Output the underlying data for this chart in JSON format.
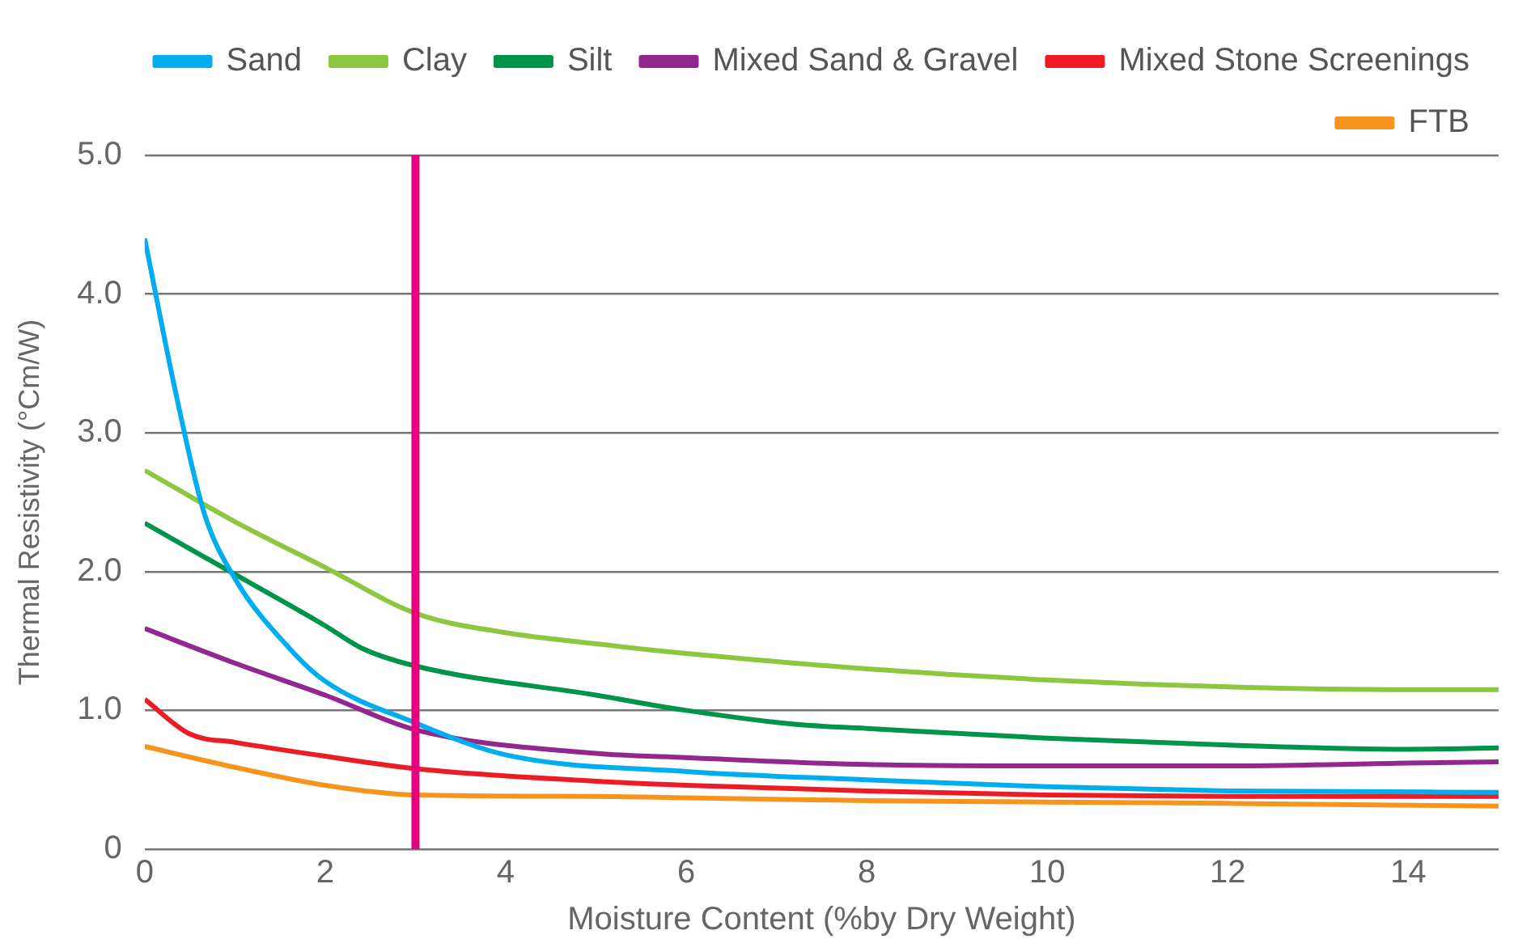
{
  "chart_data": {
    "type": "line",
    "xlabel": "Moisture Content (%by Dry Weight)",
    "ylabel": "Thermal Resistivity (°Cm/W)",
    "xlim": [
      0,
      15
    ],
    "xticks": [
      0,
      2,
      4,
      6,
      8,
      10,
      12,
      14
    ],
    "ylim": [
      0,
      5
    ],
    "yticks": [
      0,
      {
        "value": 1,
        "label": "1.0"
      },
      {
        "value": 2,
        "label": "2.0"
      },
      {
        "value": 3,
        "label": "3.0"
      },
      {
        "value": 4,
        "label": "4.0"
      },
      {
        "value": 5,
        "label": "5.0"
      }
    ],
    "grid": "y",
    "legend": "top",
    "marker": "none",
    "line_style": "solid",
    "ref_lines": [
      {
        "axis": "x",
        "value": 3,
        "color": "#e5007e"
      }
    ],
    "series": [
      {
        "name": "Sand",
        "color": "#00aeef",
        "x": [
          0,
          0.35,
          0.66,
          1,
          1.6,
          2,
          3,
          4,
          6,
          8,
          10,
          12,
          15
        ],
        "values": [
          4.4,
          3.27,
          2.42,
          1.95,
          1.45,
          1.21,
          0.91,
          0.68,
          0.56,
          0.5,
          0.45,
          0.42,
          0.41
        ]
      },
      {
        "name": "Clay",
        "color": "#8dc63f",
        "x": [
          0,
          1,
          2,
          3,
          4,
          5,
          6,
          8,
          10,
          12,
          14,
          15
        ],
        "values": [
          2.73,
          2.36,
          2.03,
          1.7,
          1.56,
          1.48,
          1.41,
          1.3,
          1.22,
          1.17,
          1.15,
          1.15
        ]
      },
      {
        "name": "Silt",
        "color": "#00934a",
        "x": [
          0,
          1,
          2,
          2.4,
          3,
          5,
          6,
          7.2,
          8,
          10,
          12,
          14,
          15
        ],
        "values": [
          2.35,
          1.98,
          1.61,
          1.45,
          1.32,
          1.11,
          1.0,
          0.9,
          0.87,
          0.8,
          0.75,
          0.72,
          0.73
        ]
      },
      {
        "name": "Mixed Sand & Gravel",
        "color": "#92278f",
        "x": [
          0,
          1,
          2,
          3,
          5,
          6,
          8,
          10,
          12,
          14,
          15
        ],
        "values": [
          1.59,
          1.34,
          1.11,
          0.86,
          0.69,
          0.66,
          0.61,
          0.6,
          0.6,
          0.62,
          0.63
        ]
      },
      {
        "name": "Mixed Stone Screenings",
        "color": "#ed1c24",
        "x": [
          0,
          0.5,
          1,
          2,
          3,
          5,
          6,
          8,
          10,
          12,
          15
        ],
        "values": [
          1.08,
          0.83,
          0.77,
          0.67,
          0.58,
          0.49,
          0.46,
          0.42,
          0.39,
          0.38,
          0.38
        ]
      },
      {
        "name": "FTB",
        "color": "#f7941d",
        "x": [
          0,
          1,
          2,
          3,
          5,
          6,
          8,
          10,
          12,
          15
        ],
        "values": [
          0.74,
          0.59,
          0.46,
          0.39,
          0.38,
          0.37,
          0.35,
          0.34,
          0.33,
          0.31
        ]
      }
    ]
  }
}
